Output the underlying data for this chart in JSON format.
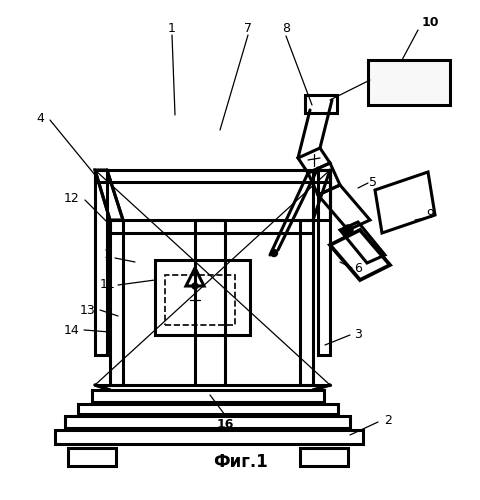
{
  "bg_color": "#ffffff",
  "line_color": "#000000",
  "fig_caption": "Фиг.1"
}
